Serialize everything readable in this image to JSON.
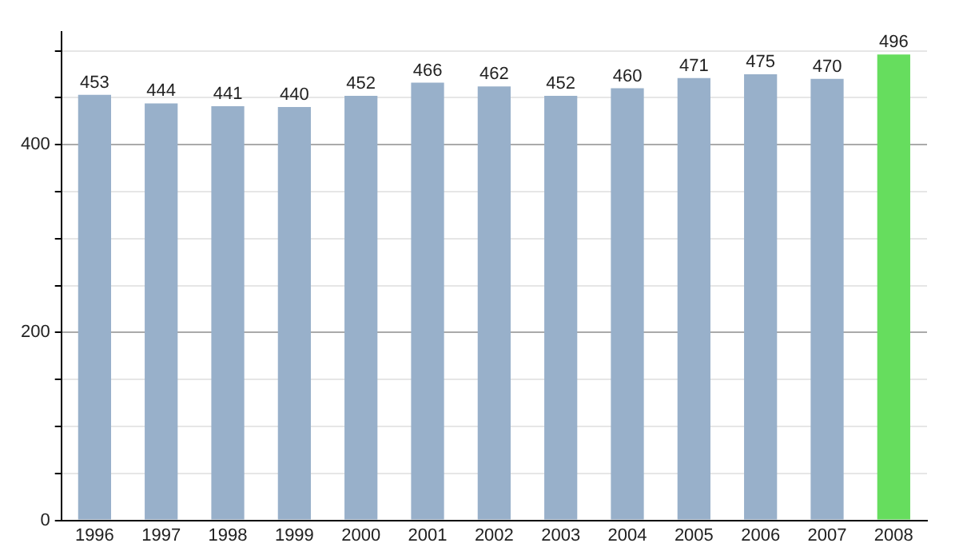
{
  "chart_data": {
    "type": "bar",
    "categories": [
      "1996",
      "1997",
      "1998",
      "1999",
      "2000",
      "2001",
      "2002",
      "2003",
      "2004",
      "2005",
      "2006",
      "2007",
      "2008"
    ],
    "values": [
      453,
      444,
      441,
      440,
      452,
      466,
      462,
      452,
      460,
      471,
      475,
      470,
      496
    ],
    "colors": [
      "#98b0ca",
      "#98b0ca",
      "#98b0ca",
      "#98b0ca",
      "#98b0ca",
      "#98b0ca",
      "#98b0ca",
      "#98b0ca",
      "#98b0ca",
      "#98b0ca",
      "#98b0ca",
      "#98b0ca",
      "#66dd5e"
    ],
    "ylim": [
      0,
      520
    ],
    "yticks": [
      0,
      {
        "value": 50,
        "label": null
      },
      {
        "value": 100,
        "label": null
      },
      {
        "value": 150,
        "label": null
      },
      200,
      {
        "value": 250,
        "label": null
      },
      {
        "value": 300,
        "label": null
      },
      {
        "value": 350,
        "label": null
      },
      400,
      {
        "value": 450,
        "label": null
      },
      {
        "value": 500,
        "label": null
      }
    ],
    "grid": "y",
    "data_labels": true,
    "legend": false
  }
}
